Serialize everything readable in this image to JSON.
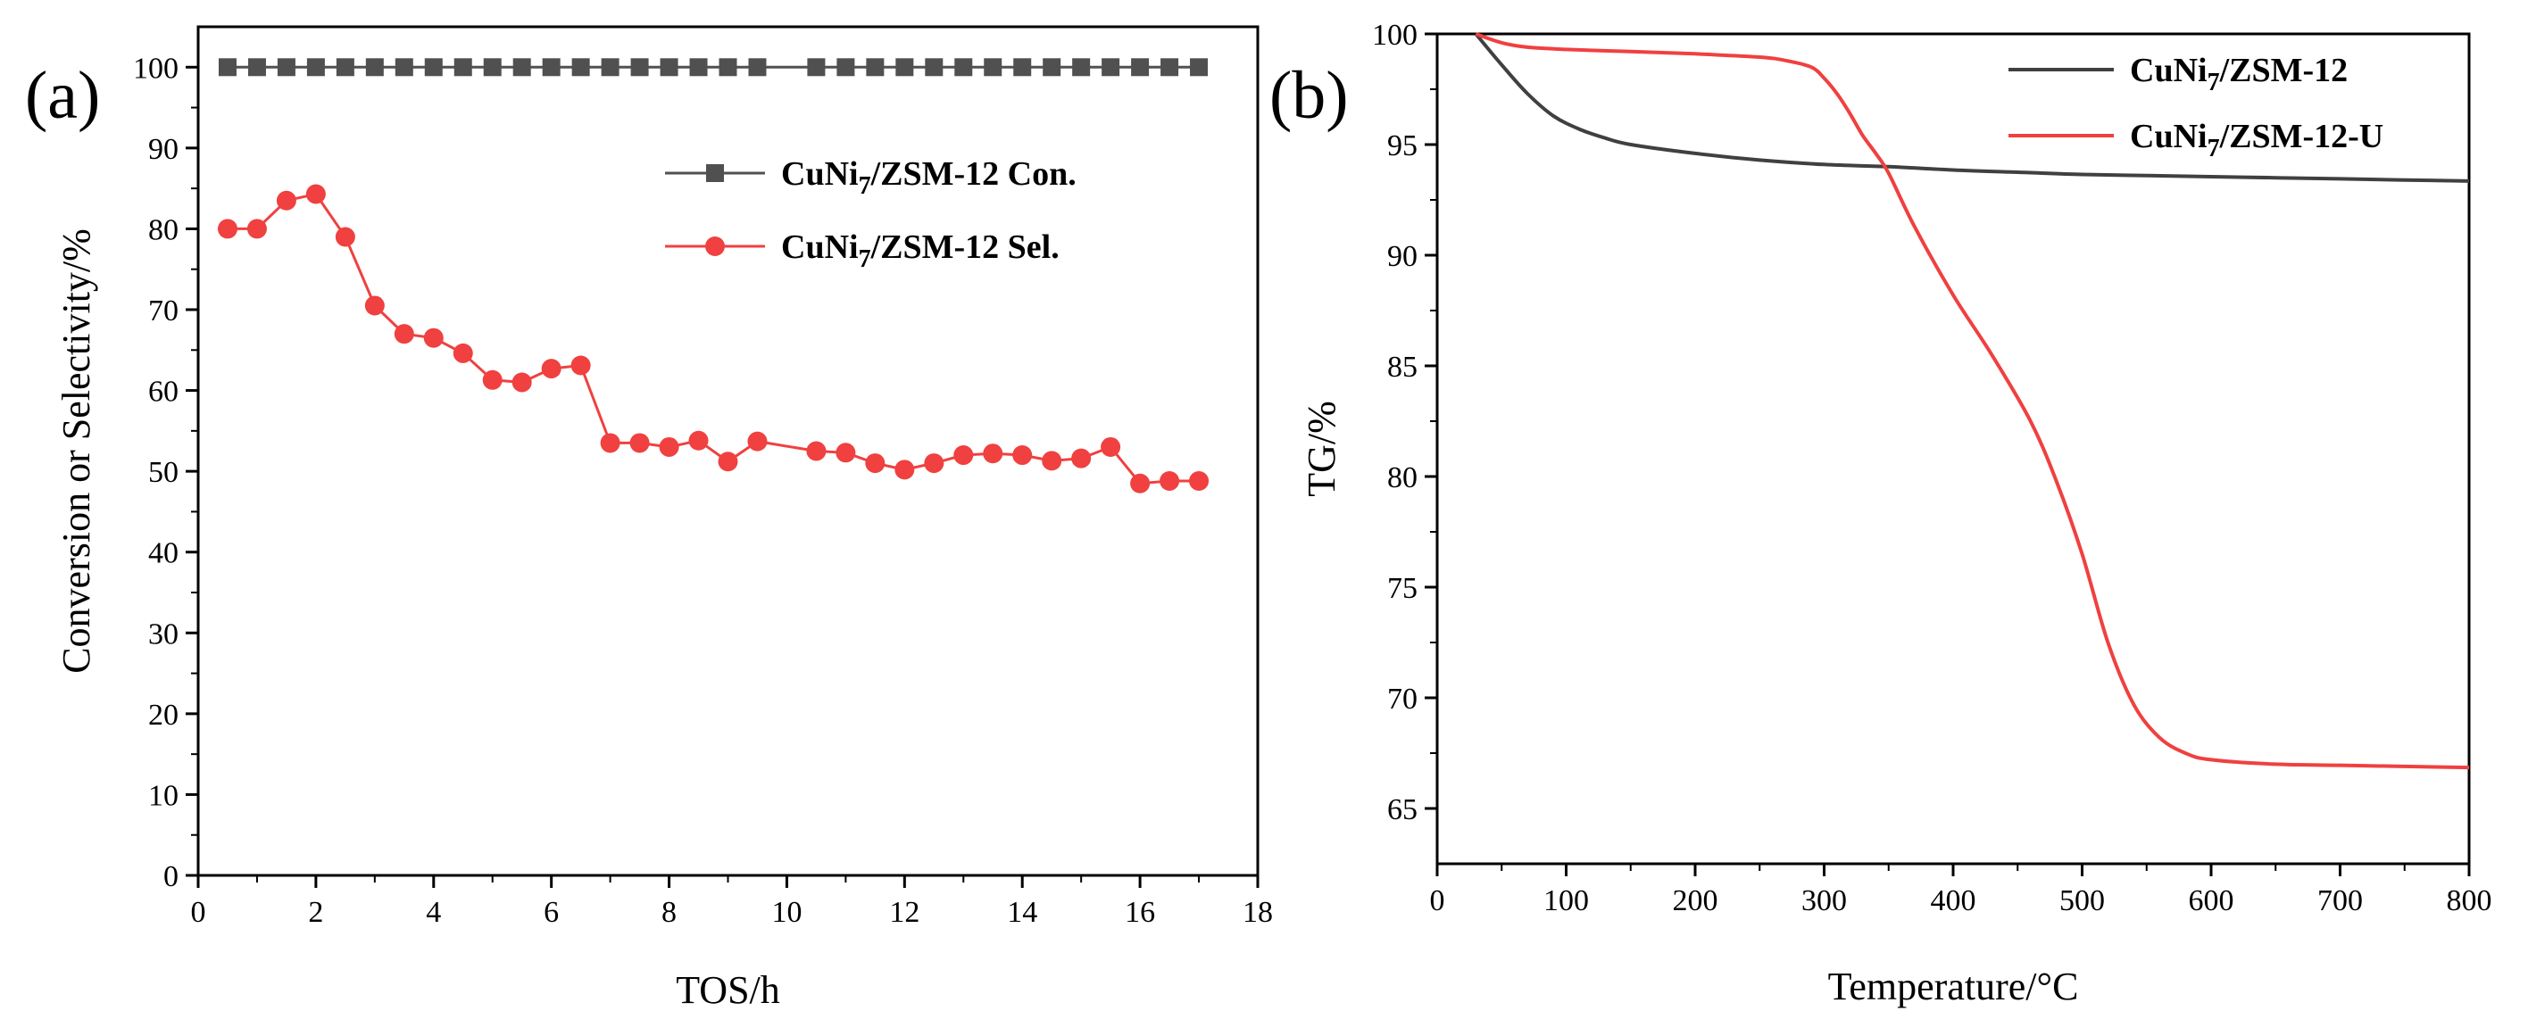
{
  "chart_data": [
    {
      "type": "line",
      "panel_label": "(a)",
      "xlabel": "TOS/h",
      "ylabel": "Conversion or Selectivity/%",
      "xlim": [
        0,
        18
      ],
      "ylim": [
        0,
        105
      ],
      "xticks": [
        0,
        2,
        4,
        6,
        8,
        10,
        12,
        14,
        16,
        18
      ],
      "yticks": [
        0,
        10,
        20,
        30,
        40,
        50,
        60,
        70,
        80,
        90,
        100
      ],
      "grid": false,
      "legend_position": "upper-right",
      "series": [
        {
          "name": "CuNi7/ZSM-12 Con.",
          "name_main": "CuNi",
          "name_sub": "7",
          "name_rest": "/ZSM-12 Con.",
          "color": "#505050",
          "marker": "square",
          "x": [
            0.5,
            1.0,
            1.5,
            2.0,
            2.5,
            3.0,
            3.5,
            4.0,
            4.5,
            5.0,
            5.5,
            6.0,
            6.5,
            7.0,
            7.5,
            8.0,
            8.5,
            9.0,
            9.5,
            10.5,
            11.0,
            11.5,
            12.0,
            12.5,
            13.0,
            13.5,
            14.0,
            14.5,
            15.0,
            15.5,
            16.0,
            16.5,
            17.0
          ],
          "y": [
            100,
            100,
            100,
            100,
            100,
            100,
            100,
            100,
            100,
            100,
            100,
            100,
            100,
            100,
            100,
            100,
            100,
            100,
            100,
            100,
            100,
            100,
            100,
            100,
            100,
            100,
            100,
            100,
            100,
            100,
            100,
            100,
            100
          ]
        },
        {
          "name": "CuNi7/ZSM-12 Sel.",
          "name_main": "CuNi",
          "name_sub": "7",
          "name_rest": "/ZSM-12 Sel.",
          "color": "#f04040",
          "marker": "circle",
          "x": [
            0.5,
            1.0,
            1.5,
            2.0,
            2.5,
            3.0,
            3.5,
            4.0,
            4.5,
            5.0,
            5.5,
            6.0,
            6.5,
            7.0,
            7.5,
            8.0,
            8.5,
            9.0,
            9.5,
            10.5,
            11.0,
            11.5,
            12.0,
            12.5,
            13.0,
            13.5,
            14.0,
            14.5,
            15.0,
            15.5,
            16.0,
            16.5,
            17.0
          ],
          "y": [
            80,
            80,
            83.5,
            84.3,
            79,
            70.5,
            67,
            66.5,
            64.6,
            61.3,
            61,
            62.7,
            63.1,
            53.5,
            53.5,
            53,
            53.8,
            51.2,
            53.7,
            52.5,
            52.3,
            51,
            50.2,
            51,
            52,
            52.2,
            52,
            51.3,
            51.6,
            53,
            48.5,
            48.8,
            48.8
          ]
        }
      ]
    },
    {
      "type": "line",
      "panel_label": "(b)",
      "xlabel": "Temperature/°C",
      "ylabel": "TG/%",
      "xlim": [
        0,
        800
      ],
      "ylim": [
        62.5,
        100
      ],
      "xticks": [
        0,
        100,
        200,
        300,
        400,
        500,
        600,
        700,
        800
      ],
      "yticks": [
        65,
        70,
        75,
        80,
        85,
        90,
        95,
        100
      ],
      "grid": false,
      "legend_position": "upper-right",
      "series": [
        {
          "name": "CuNi7/ZSM-12",
          "name_main": "CuNi",
          "name_sub": "7",
          "name_rest": "/ZSM-12",
          "color": "#404040",
          "x": [
            30,
            50,
            70,
            90,
            110,
            130,
            150,
            200,
            250,
            300,
            350,
            400,
            450,
            500,
            550,
            600,
            650,
            700,
            750,
            800
          ],
          "y": [
            100,
            98.6,
            97.3,
            96.3,
            95.7,
            95.3,
            95.0,
            94.6,
            94.3,
            94.1,
            94.0,
            93.85,
            93.75,
            93.65,
            93.6,
            93.55,
            93.5,
            93.45,
            93.4,
            93.35
          ]
        },
        {
          "name": "CuNi7/ZSM-12-U",
          "name_main": "CuNi",
          "name_sub": "7",
          "name_rest": "/ZSM-12-U",
          "color": "#f04040",
          "x": [
            30,
            50,
            70,
            100,
            150,
            200,
            250,
            270,
            290,
            300,
            310,
            320,
            330,
            340,
            350,
            370,
            400,
            430,
            460,
            480,
            500,
            520,
            540,
            560,
            580,
            600,
            650,
            700,
            750,
            800
          ],
          "y": [
            100,
            99.6,
            99.4,
            99.3,
            99.2,
            99.1,
            98.95,
            98.8,
            98.5,
            98.0,
            97.3,
            96.4,
            95.4,
            94.6,
            93.7,
            91.3,
            88.2,
            85.5,
            82.5,
            79.8,
            76.5,
            72.5,
            69.7,
            68.2,
            67.5,
            67.2,
            67.0,
            66.95,
            66.9,
            66.85
          ]
        }
      ]
    }
  ]
}
